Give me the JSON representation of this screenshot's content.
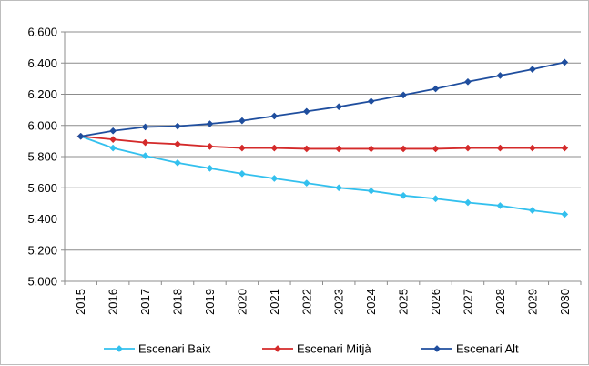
{
  "chart_data": {
    "type": "line",
    "title": "",
    "xlabel": "",
    "ylabel": "",
    "x": [
      "2015",
      "2016",
      "2017",
      "2018",
      "2019",
      "2020",
      "2021",
      "2022",
      "2023",
      "2024",
      "2025",
      "2026",
      "2027",
      "2028",
      "2029",
      "2030"
    ],
    "y_ticks": [
      "5.000",
      "5.200",
      "5.400",
      "5.600",
      "5.800",
      "6.000",
      "6.200",
      "6.400",
      "6.600"
    ],
    "ylim": [
      5000,
      6600
    ],
    "grid": true,
    "legend_position": "bottom",
    "series": [
      {
        "name": "Escenari Baix",
        "color": "#33c0ee",
        "marker": "diamond",
        "values": [
          5930,
          5855,
          5805,
          5760,
          5725,
          5690,
          5660,
          5630,
          5600,
          5580,
          5550,
          5530,
          5505,
          5485,
          5455,
          5430
        ]
      },
      {
        "name": "Escenari Mitjà",
        "color": "#d42a2a",
        "marker": "diamond",
        "values": [
          5930,
          5910,
          5890,
          5880,
          5865,
          5855,
          5855,
          5850,
          5850,
          5850,
          5850,
          5850,
          5855,
          5855,
          5855,
          5855
        ]
      },
      {
        "name": "Escenari Alt",
        "color": "#1f4e9e",
        "marker": "diamond",
        "values": [
          5930,
          5965,
          5990,
          5995,
          6010,
          6030,
          6060,
          6090,
          6120,
          6155,
          6195,
          6235,
          6280,
          6320,
          6360,
          6405
        ]
      }
    ]
  }
}
